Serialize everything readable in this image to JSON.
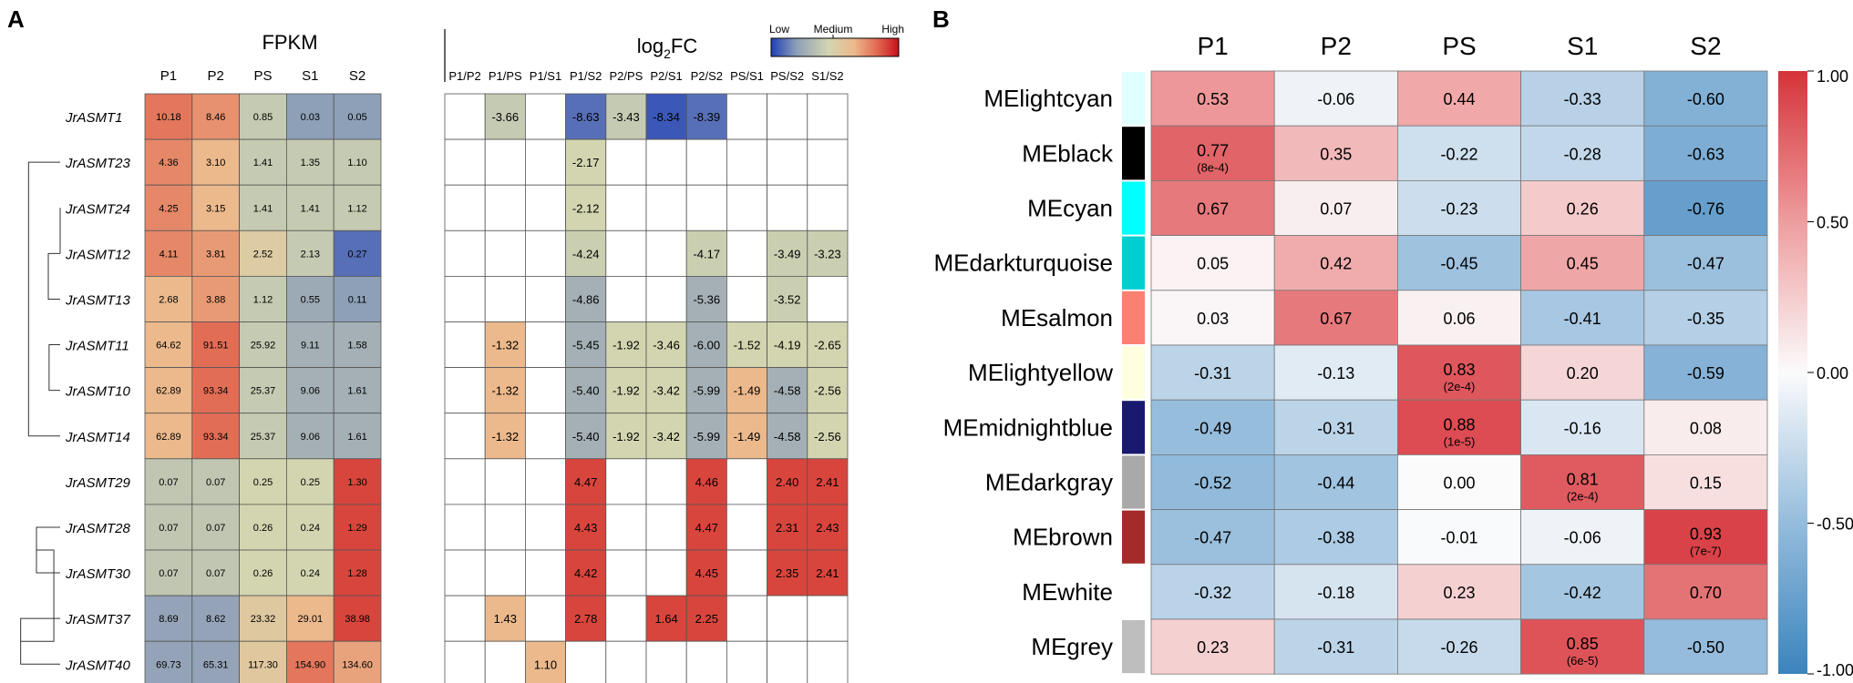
{
  "chart_data": [
    {
      "type": "heatmap",
      "panel": "A",
      "fpkm_title": "FPKM",
      "log2fc_title": "log",
      "log2fc_sub": "2",
      "log2fc_suffix": "FC",
      "legend": {
        "low": "Low",
        "medium": "Medium",
        "high": "High"
      },
      "fpkm_columns": [
        "P1",
        "P2",
        "PS",
        "S1",
        "S2"
      ],
      "fc_columns": [
        "P1/P2",
        "P1/PS",
        "P1/S1",
        "P1/S2",
        "P2/PS",
        "P2/S1",
        "P2/S2",
        "PS/S1",
        "PS/S2",
        "S1/S2"
      ],
      "genes": [
        "JrASMT1",
        "JrASMT23",
        "JrASMT24",
        "JrASMT12",
        "JrASMT13",
        "JrASMT11",
        "JrASMT10",
        "JrASMT14",
        "JrASMT29",
        "JrASMT28",
        "JrASMT30",
        "JrASMT37",
        "JrASMT40"
      ],
      "fpkm": [
        [
          "10.18",
          "8.46",
          "0.85",
          "0.03",
          "0.05"
        ],
        [
          "4.36",
          "3.10",
          "1.41",
          "1.35",
          "1.10"
        ],
        [
          "4.25",
          "3.15",
          "1.41",
          "1.41",
          "1.12"
        ],
        [
          "4.11",
          "3.81",
          "2.52",
          "2.13",
          "0.27"
        ],
        [
          "2.68",
          "3.88",
          "1.12",
          "0.55",
          "0.11"
        ],
        [
          "64.62",
          "91.51",
          "25.92",
          "9.11",
          "1.58"
        ],
        [
          "62.89",
          "93.34",
          "25.37",
          "9.06",
          "1.61"
        ],
        [
          "62.89",
          "93.34",
          "25.37",
          "9.06",
          "1.61"
        ],
        [
          "0.07",
          "0.07",
          "0.25",
          "0.25",
          "1.30"
        ],
        [
          "0.07",
          "0.07",
          "0.26",
          "0.24",
          "1.29"
        ],
        [
          "0.07",
          "0.07",
          "0.26",
          "0.24",
          "1.28"
        ],
        [
          "8.69",
          "8.62",
          "23.32",
          "29.01",
          "38.98"
        ],
        [
          "69.73",
          "65.31",
          "117.30",
          "154.90",
          "134.60"
        ]
      ],
      "fpkm_levels": [
        [
          0.8,
          0.74,
          0.4,
          0.2,
          0.2
        ],
        [
          0.76,
          0.65,
          0.4,
          0.4,
          0.4
        ],
        [
          0.76,
          0.65,
          0.4,
          0.4,
          0.4
        ],
        [
          0.76,
          0.72,
          0.52,
          0.4,
          0.1
        ],
        [
          0.65,
          0.72,
          0.4,
          0.25,
          0.2
        ],
        [
          0.65,
          0.82,
          0.4,
          0.28,
          0.28
        ],
        [
          0.65,
          0.82,
          0.4,
          0.28,
          0.28
        ],
        [
          0.65,
          0.82,
          0.4,
          0.28,
          0.28
        ],
        [
          0.38,
          0.38,
          0.45,
          0.45,
          0.9
        ],
        [
          0.38,
          0.38,
          0.45,
          0.45,
          0.9
        ],
        [
          0.38,
          0.38,
          0.45,
          0.45,
          0.9
        ],
        [
          0.22,
          0.22,
          0.54,
          0.65,
          0.9
        ],
        [
          0.22,
          0.22,
          0.55,
          0.8,
          0.7
        ]
      ],
      "log2fc": [
        [
          "",
          "-3.66",
          "",
          "-8.63",
          "-3.43",
          "-8.34",
          "-8.39",
          "",
          "",
          ""
        ],
        [
          "",
          "",
          "",
          "-2.17",
          "",
          "",
          "",
          "",
          "",
          ""
        ],
        [
          "",
          "",
          "",
          "-2.12",
          "",
          "",
          "",
          "",
          "",
          ""
        ],
        [
          "",
          "",
          "",
          "-4.24",
          "",
          "",
          "-4.17",
          "",
          "-3.49",
          "-3.23"
        ],
        [
          "",
          "",
          "",
          "-4.86",
          "",
          "",
          "-5.36",
          "",
          "-3.52",
          ""
        ],
        [
          "",
          "-1.32",
          "",
          "-5.45",
          "-1.92",
          "-3.46",
          "-6.00",
          "-1.52",
          "-4.19",
          "-2.65"
        ],
        [
          "",
          "-1.32",
          "",
          "-5.40",
          "-1.92",
          "-3.42",
          "-5.99",
          "-1.49",
          "-4.58",
          "-2.56"
        ],
        [
          "",
          "-1.32",
          "",
          "-5.40",
          "-1.92",
          "-3.42",
          "-5.99",
          "-1.49",
          "-4.58",
          "-2.56"
        ],
        [
          "",
          "",
          "",
          "4.47",
          "",
          "",
          "4.46",
          "",
          "2.40",
          "2.41"
        ],
        [
          "",
          "",
          "",
          "4.43",
          "",
          "",
          "4.47",
          "",
          "2.31",
          "2.43"
        ],
        [
          "",
          "",
          "",
          "4.42",
          "",
          "",
          "4.45",
          "",
          "2.35",
          "2.41"
        ],
        [
          "",
          "1.43",
          "",
          "2.78",
          "",
          "1.64",
          "2.25",
          "",
          "",
          ""
        ],
        [
          "",
          "",
          "1.10",
          "",
          "",
          "",
          "",
          "",
          "",
          ""
        ]
      ],
      "log2fc_levels": [
        [
          -1,
          0.4,
          -1,
          0.1,
          0.4,
          0.05,
          0.1,
          -1,
          -1,
          -1
        ],
        [
          -1,
          -1,
          -1,
          0.45,
          -1,
          -1,
          -1,
          -1,
          -1,
          -1
        ],
        [
          -1,
          -1,
          -1,
          0.45,
          -1,
          -1,
          -1,
          -1,
          -1,
          -1
        ],
        [
          -1,
          -1,
          -1,
          0.42,
          -1,
          -1,
          0.42,
          -1,
          0.42,
          0.42
        ],
        [
          -1,
          -1,
          -1,
          0.28,
          -1,
          -1,
          0.28,
          -1,
          0.42,
          -1
        ],
        [
          -1,
          0.65,
          -1,
          0.28,
          0.45,
          0.45,
          0.28,
          0.45,
          0.45,
          0.45
        ],
        [
          -1,
          0.65,
          -1,
          0.28,
          0.45,
          0.45,
          0.28,
          0.65,
          0.28,
          0.45
        ],
        [
          -1,
          0.65,
          -1,
          0.28,
          0.45,
          0.45,
          0.28,
          0.65,
          0.28,
          0.45
        ],
        [
          -1,
          -1,
          -1,
          0.9,
          -1,
          -1,
          0.9,
          -1,
          0.9,
          0.9
        ],
        [
          -1,
          -1,
          -1,
          0.9,
          -1,
          -1,
          0.9,
          -1,
          0.9,
          0.9
        ],
        [
          -1,
          -1,
          -1,
          0.9,
          -1,
          -1,
          0.9,
          -1,
          0.9,
          0.9
        ],
        [
          -1,
          0.65,
          -1,
          0.9,
          -1,
          0.9,
          0.9,
          -1,
          -1,
          -1
        ],
        [
          -1,
          -1,
          0.65,
          -1,
          -1,
          -1,
          -1,
          -1,
          -1,
          -1
        ]
      ],
      "tree": [
        [
          -1,
          8,
          60
        ],
        [
          4,
          3,
          15
        ],
        [
          2,
          3,
          0
        ],
        [
          -1,
          -4,
          40
        ],
        [
          5,
          6,
          14
        ],
        [
          -1,
          -2,
          10
        ],
        [
          -1,
          -3,
          5
        ],
        [
          1,
          7,
          40
        ],
        [
          -11,
          -12,
          8
        ],
        [
          -9,
          -10,
          4
        ],
        [
          10,
          9,
          30
        ],
        [
          11,
          12,
          50
        ]
      ]
    },
    {
      "type": "heatmap",
      "panel": "B",
      "columns": [
        "P1",
        "P2",
        "PS",
        "S1",
        "S2"
      ],
      "modules": [
        "MElightcyan",
        "MEblack",
        "MEcyan",
        "MEdarkturquoise",
        "MEsalmon",
        "MElightyellow",
        "MEmidnightblue",
        "MEdarkgray",
        "MEbrown",
        "MEwhite",
        "MEgrey"
      ],
      "module_colors": [
        "#e0ffff",
        "#000000",
        "#00ffff",
        "#00ced1",
        "#fa8072",
        "#ffffe0",
        "#191970",
        "#a9a9a9",
        "#a52a2a",
        "#ffffff",
        "#bebebe"
      ],
      "values": [
        [
          0.53,
          -0.06,
          0.44,
          -0.33,
          -0.6
        ],
        [
          0.77,
          0.35,
          -0.22,
          -0.28,
          -0.63
        ],
        [
          0.67,
          0.07,
          -0.23,
          0.26,
          -0.76
        ],
        [
          0.05,
          0.42,
          -0.45,
          0.45,
          -0.47
        ],
        [
          0.03,
          0.67,
          0.06,
          -0.41,
          -0.35
        ],
        [
          -0.31,
          -0.13,
          0.83,
          0.2,
          -0.59
        ],
        [
          -0.49,
          -0.31,
          0.88,
          -0.16,
          0.08
        ],
        [
          -0.52,
          -0.44,
          0.0,
          0.81,
          0.15
        ],
        [
          -0.47,
          -0.38,
          -0.01,
          -0.06,
          0.93
        ],
        [
          -0.32,
          -0.18,
          0.23,
          -0.42,
          0.7
        ],
        [
          0.23,
          -0.31,
          -0.26,
          0.85,
          -0.5
        ]
      ],
      "labels": [
        [
          "0.53",
          "-0.06",
          "0.44",
          "-0.33",
          "-0.60"
        ],
        [
          "0.77",
          "0.35",
          "-0.22",
          "-0.28",
          "-0.63"
        ],
        [
          "0.67",
          "0.07",
          "-0.23",
          "0.26",
          "-0.76"
        ],
        [
          "0.05",
          "0.42",
          "-0.45",
          "0.45",
          "-0.47"
        ],
        [
          "0.03",
          "0.67",
          "0.06",
          "-0.41",
          "-0.35"
        ],
        [
          "-0.31",
          "-0.13",
          "0.83",
          "0.20",
          "-0.59"
        ],
        [
          "-0.49",
          "-0.31",
          "0.88",
          "-0.16",
          "0.08"
        ],
        [
          "-0.52",
          "-0.44",
          "0.00",
          "0.81",
          "0.15"
        ],
        [
          "-0.47",
          "-0.38",
          "-0.01",
          "-0.06",
          "0.93"
        ],
        [
          "-0.32",
          "-0.18",
          "0.23",
          "-0.42",
          "0.70"
        ],
        [
          "0.23",
          "-0.31",
          "-0.26",
          "0.85",
          "-0.50"
        ]
      ],
      "pvalues": [
        [
          "",
          "",
          "",
          "",
          ""
        ],
        [
          "(8e-4)",
          "",
          "",
          "",
          ""
        ],
        [
          "",
          "",
          "",
          "",
          ""
        ],
        [
          "",
          "",
          "",
          "",
          ""
        ],
        [
          "",
          "",
          "",
          "",
          ""
        ],
        [
          "",
          "",
          "(2e-4)",
          "",
          ""
        ],
        [
          "",
          "",
          "(1e-5)",
          "",
          ""
        ],
        [
          "",
          "",
          "",
          "(2e-4)",
          ""
        ],
        [
          "",
          "",
          "",
          "",
          "(7e-7)"
        ],
        [
          "",
          "",
          "",
          "",
          ""
        ],
        [
          "",
          "",
          "",
          "(6e-5)",
          ""
        ]
      ],
      "colorbar_ticks": [
        "1.00",
        "0.50",
        "0.00",
        "-0.50",
        "-1.00"
      ],
      "colorbar_values": [
        1.0,
        0.5,
        0.0,
        -0.5,
        -1.0
      ],
      "range": [
        -1,
        1
      ]
    }
  ],
  "panel_labels": {
    "a": "A",
    "b": "B"
  }
}
